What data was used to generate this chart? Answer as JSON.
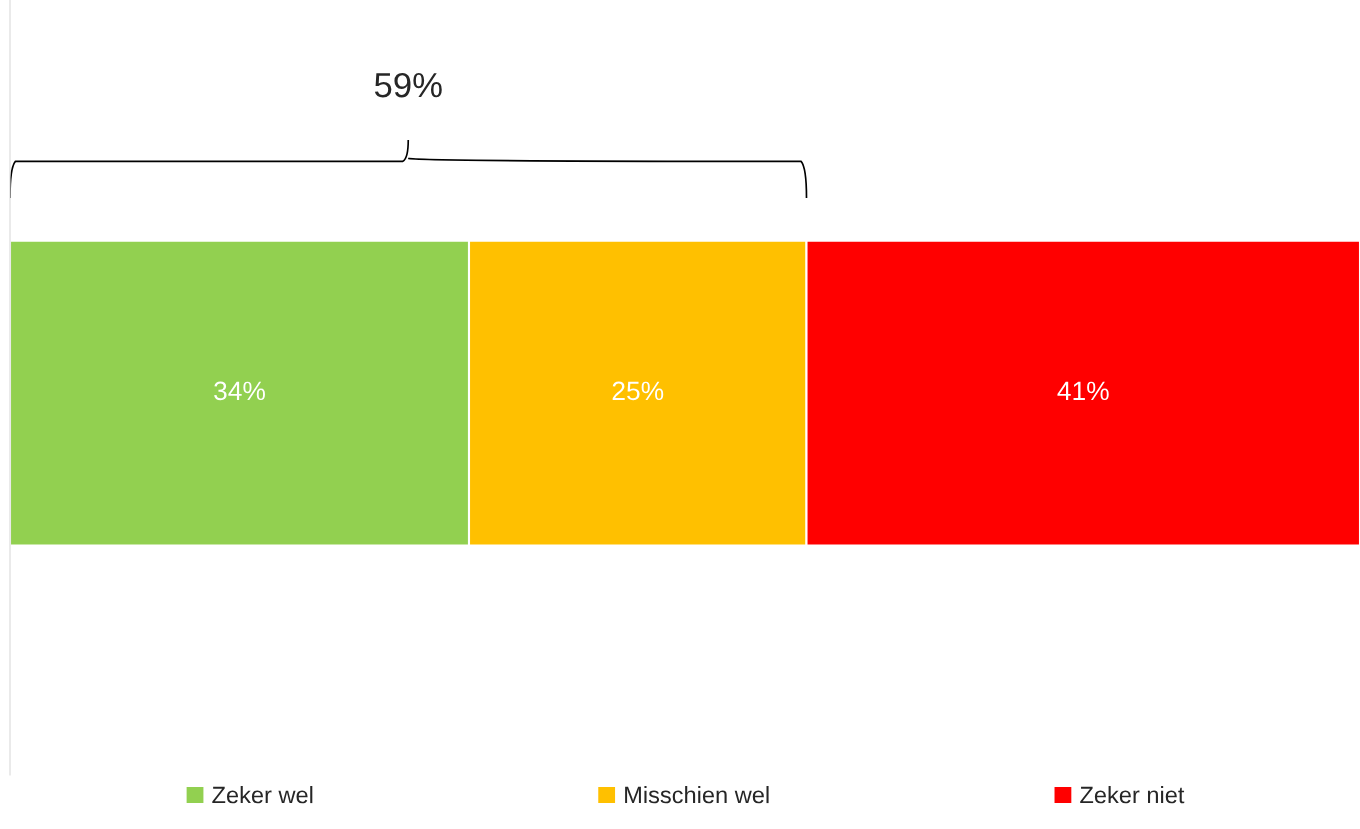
{
  "chart_data": {
    "type": "bar",
    "orientation": "horizontal",
    "stacked": true,
    "categories": [
      null
    ],
    "series": [
      {
        "name": "Zeker wel",
        "color": "#92d050",
        "values": [
          34
        ],
        "value_labels": [
          "34%"
        ]
      },
      {
        "name": "Misschien wel",
        "color": "#ffc000",
        "values": [
          25
        ],
        "value_labels": [
          "25%"
        ]
      },
      {
        "name": "Zeker niet",
        "color": "#ff0000",
        "values": [
          41
        ],
        "value_labels": [
          "41%"
        ]
      }
    ],
    "annotations": [
      "59%"
    ],
    "legend": "bottom"
  }
}
